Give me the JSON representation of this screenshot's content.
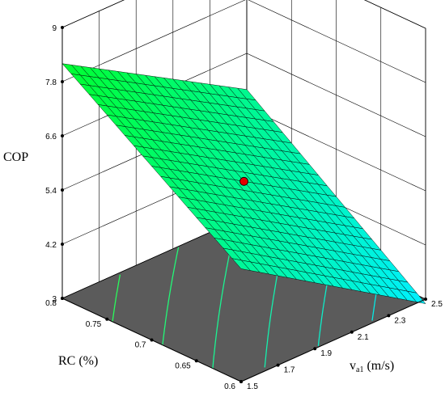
{
  "chart_data": {
    "type": "surface3d",
    "zlabel": "COP",
    "xlabel_main": "v",
    "xlabel_sub": "a1",
    "xlabel_unit": " (m/s)",
    "ylabel": "RC (%)",
    "x_axis": {
      "min": 1.5,
      "max": 2.5,
      "ticks": [
        "1.5",
        "1.7",
        "1.9",
        "2.1",
        "2.3",
        "2.5"
      ]
    },
    "y_axis": {
      "min": 0.6,
      "max": 0.8,
      "ticks": [
        "0.6",
        "0.65",
        "0.7",
        "0.75",
        "0.8"
      ]
    },
    "z_axis": {
      "min": 3,
      "max": 9,
      "ticks": [
        "3",
        "4.2",
        "5.4",
        "6.6",
        "7.8",
        "9"
      ]
    },
    "surface_corners": [
      {
        "va1": 1.5,
        "RC": 0.6,
        "COP": 5.5
      },
      {
        "va1": 2.5,
        "RC": 0.6,
        "COP": 2.9
      },
      {
        "va1": 2.5,
        "RC": 0.8,
        "COP": 5.8
      },
      {
        "va1": 1.5,
        "RC": 0.8,
        "COP": 8.2
      }
    ],
    "design_point": {
      "va1": 2.0,
      "RC": 0.7,
      "COP": 5.6,
      "color": "#e00000"
    },
    "contour_lines": 6,
    "grid": true,
    "colors": {
      "low": "#00f0ff",
      "high": "#00ff30",
      "floor": "#5b5b5b",
      "contour_low": "#00e5ff",
      "contour_high": "#30ff40"
    }
  }
}
